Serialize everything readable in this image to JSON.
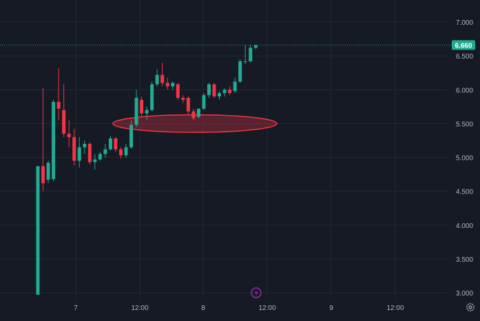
{
  "chart_data": {
    "type": "candlestick",
    "y_axis": {
      "ticks": [
        "7.000",
        "6.500",
        "6.000",
        "5.500",
        "5.000",
        "4.500",
        "4.000",
        "3.500",
        "3.000"
      ],
      "range": [
        2.92,
        7.15
      ]
    },
    "x_axis": {
      "ticks": [
        "7",
        "12:00",
        "8",
        "12:00",
        "9",
        "12:00"
      ]
    },
    "last_price": "6.660",
    "grid": true,
    "candles": [
      {
        "o": 2.97,
        "h": 4.87,
        "l": 2.97,
        "c": 4.87
      },
      {
        "o": 4.87,
        "h": 6.02,
        "l": 4.5,
        "c": 4.62
      },
      {
        "o": 4.67,
        "h": 4.95,
        "l": 4.62,
        "c": 4.92
      },
      {
        "o": 4.68,
        "h": 5.85,
        "l": 4.65,
        "c": 5.82
      },
      {
        "o": 5.82,
        "h": 6.32,
        "l": 5.55,
        "c": 5.72
      },
      {
        "o": 5.7,
        "h": 6.08,
        "l": 5.3,
        "c": 5.35
      },
      {
        "o": 5.35,
        "h": 5.55,
        "l": 5.15,
        "c": 5.3
      },
      {
        "o": 5.3,
        "h": 5.42,
        "l": 4.88,
        "c": 4.95
      },
      {
        "o": 4.95,
        "h": 5.3,
        "l": 4.85,
        "c": 5.15
      },
      {
        "o": 5.15,
        "h": 5.25,
        "l": 5.05,
        "c": 5.2
      },
      {
        "o": 5.2,
        "h": 5.22,
        "l": 4.9,
        "c": 4.93
      },
      {
        "o": 4.93,
        "h": 5.05,
        "l": 4.82,
        "c": 4.97
      },
      {
        "o": 4.97,
        "h": 5.08,
        "l": 4.95,
        "c": 5.05
      },
      {
        "o": 5.05,
        "h": 5.2,
        "l": 5.0,
        "c": 5.12
      },
      {
        "o": 5.12,
        "h": 5.32,
        "l": 5.1,
        "c": 5.28
      },
      {
        "o": 5.28,
        "h": 5.3,
        "l": 5.08,
        "c": 5.12
      },
      {
        "o": 5.12,
        "h": 5.15,
        "l": 4.98,
        "c": 5.03
      },
      {
        "o": 5.03,
        "h": 5.2,
        "l": 5.0,
        "c": 5.15
      },
      {
        "o": 5.15,
        "h": 5.55,
        "l": 5.13,
        "c": 5.48
      },
      {
        "o": 5.48,
        "h": 6.0,
        "l": 5.45,
        "c": 5.88
      },
      {
        "o": 5.85,
        "h": 5.9,
        "l": 5.6,
        "c": 5.65
      },
      {
        "o": 5.65,
        "h": 5.75,
        "l": 5.55,
        "c": 5.7
      },
      {
        "o": 5.7,
        "h": 6.12,
        "l": 5.68,
        "c": 6.08
      },
      {
        "o": 6.08,
        "h": 6.3,
        "l": 6.05,
        "c": 6.22
      },
      {
        "o": 6.22,
        "h": 6.4,
        "l": 6.05,
        "c": 6.1
      },
      {
        "o": 6.1,
        "h": 6.18,
        "l": 6.0,
        "c": 6.05
      },
      {
        "o": 6.05,
        "h": 6.12,
        "l": 6.0,
        "c": 6.1
      },
      {
        "o": 6.08,
        "h": 6.1,
        "l": 5.85,
        "c": 5.88
      },
      {
        "o": 5.88,
        "h": 5.92,
        "l": 5.8,
        "c": 5.85
      },
      {
        "o": 5.88,
        "h": 5.9,
        "l": 5.62,
        "c": 5.68
      },
      {
        "o": 5.68,
        "h": 5.72,
        "l": 5.55,
        "c": 5.58
      },
      {
        "o": 5.6,
        "h": 5.72,
        "l": 5.58,
        "c": 5.72
      },
      {
        "o": 5.72,
        "h": 5.95,
        "l": 5.7,
        "c": 5.92
      },
      {
        "o": 5.92,
        "h": 6.1,
        "l": 5.88,
        "c": 6.08
      },
      {
        "o": 6.08,
        "h": 6.1,
        "l": 5.88,
        "c": 5.9
      },
      {
        "o": 5.9,
        "h": 5.98,
        "l": 5.85,
        "c": 5.95
      },
      {
        "o": 5.95,
        "h": 6.02,
        "l": 5.9,
        "c": 6.0
      },
      {
        "o": 6.0,
        "h": 6.05,
        "l": 5.92,
        "c": 5.95
      },
      {
        "o": 5.98,
        "h": 6.18,
        "l": 5.95,
        "c": 6.12
      },
      {
        "o": 6.12,
        "h": 6.45,
        "l": 6.1,
        "c": 6.42
      },
      {
        "o": 6.42,
        "h": 6.66,
        "l": 6.38,
        "c": 6.42
      },
      {
        "o": 6.42,
        "h": 6.66,
        "l": 6.4,
        "c": 6.62
      },
      {
        "o": 6.62,
        "h": 6.66,
        "l": 6.6,
        "c": 6.66
      }
    ],
    "annotations": [
      {
        "type": "ellipse",
        "price_low": 5.38,
        "price_high": 5.62,
        "shape": "highlight-zone"
      }
    ]
  },
  "colors": {
    "background": "#161a25",
    "grid": "#242833",
    "up": "#22ab94",
    "down": "#f23645",
    "axis_text": "#b2b5be",
    "price_label_bg": "#22ab94",
    "price_label_text": "#ffffff",
    "ellipse_fill": "rgba(242,54,69,0.3)",
    "ellipse_stroke": "#f23645",
    "lightning_icon": "#9c27b0"
  }
}
